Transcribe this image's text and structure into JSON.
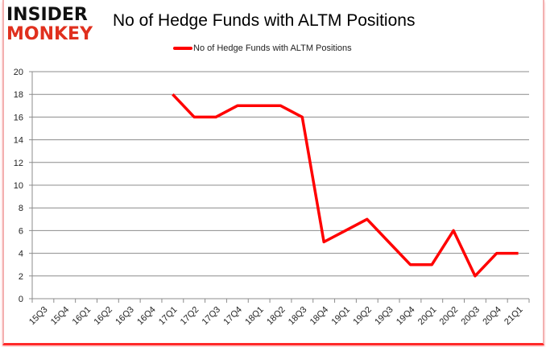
{
  "logo": {
    "line1": "INSIDER",
    "line2": "MONKEY"
  },
  "header": {
    "title": "No of Hedge Funds with ALTM Positions"
  },
  "legend": {
    "label": "No of Hedge Funds with ALTM Positions",
    "color": "#ff0000"
  },
  "chart_data": {
    "type": "line",
    "title": "No of Hedge Funds with ALTM Positions",
    "xlabel": "",
    "ylabel": "",
    "ylim": [
      0,
      20
    ],
    "yticks": [
      0,
      2,
      4,
      6,
      8,
      10,
      12,
      14,
      16,
      18,
      20
    ],
    "grid": true,
    "legend_position": "top",
    "categories": [
      "15Q3",
      "15Q4",
      "16Q1",
      "16Q2",
      "16Q3",
      "16Q4",
      "17Q1",
      "17Q2",
      "17Q3",
      "17Q4",
      "18Q1",
      "18Q2",
      "18Q3",
      "18Q4",
      "19Q1",
      "19Q2",
      "19Q3",
      "19Q4",
      "20Q1",
      "20Q2",
      "20Q3",
      "20Q4",
      "21Q1"
    ],
    "series": [
      {
        "name": "No of Hedge Funds with ALTM Positions",
        "color": "#ff0000",
        "values": [
          null,
          null,
          null,
          null,
          null,
          null,
          18,
          16,
          16,
          17,
          17,
          17,
          16,
          5,
          6,
          7,
          5,
          3,
          3,
          6,
          2,
          4,
          4
        ]
      }
    ]
  }
}
